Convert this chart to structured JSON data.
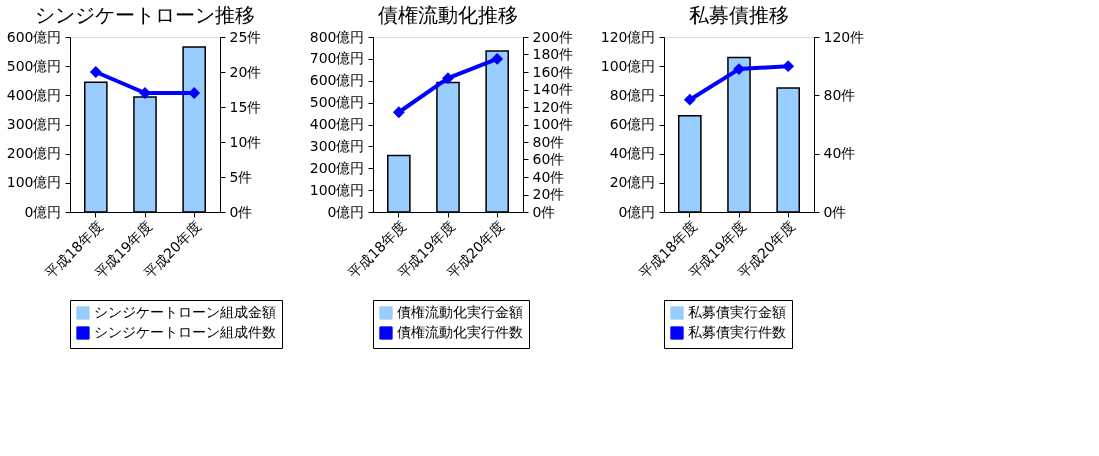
{
  "chart_data": [
    {
      "type": "bar",
      "title": "シンジケートローン推移",
      "categories": [
        "平成18年度",
        "平成19年度",
        "平成20年度"
      ],
      "series": [
        {
          "name": "シンジケートローン組成金額",
          "color": "#99ccff",
          "values": [
            445,
            394,
            566
          ]
        },
        {
          "name": "シンジケートローン組成件数",
          "type": "line",
          "axis": "y2",
          "color": "#0000ff",
          "values": [
            20,
            17,
            17
          ]
        }
      ],
      "ylim": [
        0,
        600
      ],
      "yticks": [
        {
          "value": 0,
          "label": "0億円"
        },
        {
          "value": 100,
          "label": "100億円"
        },
        {
          "value": 200,
          "label": "200億円"
        },
        {
          "value": 300,
          "label": "300億円"
        },
        {
          "value": 400,
          "label": "400億円"
        },
        {
          "value": 500,
          "label": "500億円"
        },
        {
          "value": 600,
          "label": "600億円"
        }
      ],
      "y2lim": [
        0,
        25
      ],
      "y2ticks": [
        {
          "value": 0,
          "label": "0件"
        },
        {
          "value": 5,
          "label": "5件"
        },
        {
          "value": 10,
          "label": "10件"
        },
        {
          "value": 15,
          "label": "15件"
        },
        {
          "value": 20,
          "label": "20件"
        },
        {
          "value": 25,
          "label": "25件"
        }
      ],
      "legend": "bottom",
      "marker": "diamond"
    },
    {
      "type": "bar",
      "title": "債権流動化推移",
      "categories": [
        "平成18年度",
        "平成19年度",
        "平成20年度"
      ],
      "series": [
        {
          "name": "債権流動化実行金額",
          "color": "#99ccff",
          "values": [
            258,
            592,
            736
          ]
        },
        {
          "name": "債権流動化実行件数",
          "type": "line",
          "axis": "y2",
          "color": "#0000ff",
          "values": [
            114,
            153,
            175
          ]
        }
      ],
      "ylim": [
        0,
        800
      ],
      "yticks": [
        {
          "value": 0,
          "label": "0億円"
        },
        {
          "value": 100,
          "label": "100億円"
        },
        {
          "value": 200,
          "label": "200億円"
        },
        {
          "value": 300,
          "label": "300億円"
        },
        {
          "value": 400,
          "label": "400億円"
        },
        {
          "value": 500,
          "label": "500億円"
        },
        {
          "value": 600,
          "label": "600億円"
        },
        {
          "value": 700,
          "label": "700億円"
        },
        {
          "value": 800,
          "label": "800億円"
        }
      ],
      "y2lim": [
        0,
        200
      ],
      "y2ticks": [
        {
          "value": 0,
          "label": "0件"
        },
        {
          "value": 20,
          "label": "20件"
        },
        {
          "value": 40,
          "label": "40件"
        },
        {
          "value": 60,
          "label": "60件"
        },
        {
          "value": 80,
          "label": "80件"
        },
        {
          "value": 100,
          "label": "100件"
        },
        {
          "value": 120,
          "label": "120件"
        },
        {
          "value": 140,
          "label": "140件"
        },
        {
          "value": 160,
          "label": "160件"
        },
        {
          "value": 180,
          "label": "180件"
        },
        {
          "value": 200,
          "label": "200件"
        }
      ],
      "legend": "bottom",
      "marker": "diamond"
    },
    {
      "type": "bar",
      "title": "私募債推移",
      "categories": [
        "平成18年度",
        "平成19年度",
        "平成20年度"
      ],
      "series": [
        {
          "name": "私募債実行金額",
          "color": "#99ccff",
          "values": [
            66,
            106,
            85
          ]
        },
        {
          "name": "私募債実行件数",
          "type": "line",
          "axis": "y2",
          "color": "#0000ff",
          "values": [
            77,
            98,
            100
          ]
        }
      ],
      "ylim": [
        0,
        120
      ],
      "yticks": [
        {
          "value": 0,
          "label": "0億円"
        },
        {
          "value": 20,
          "label": "20億円"
        },
        {
          "value": 40,
          "label": "40億円"
        },
        {
          "value": 60,
          "label": "60億円"
        },
        {
          "value": 80,
          "label": "80億円"
        },
        {
          "value": 100,
          "label": "100億円"
        },
        {
          "value": 120,
          "label": "120億円"
        }
      ],
      "y2lim": [
        0,
        120
      ],
      "y2ticks": [
        {
          "value": 0,
          "label": "0件"
        },
        {
          "value": 40,
          "label": "40件"
        },
        {
          "value": 80,
          "label": "80件"
        },
        {
          "value": 120,
          "label": "120件"
        }
      ],
      "legend": "bottom",
      "marker": "diamond"
    }
  ]
}
